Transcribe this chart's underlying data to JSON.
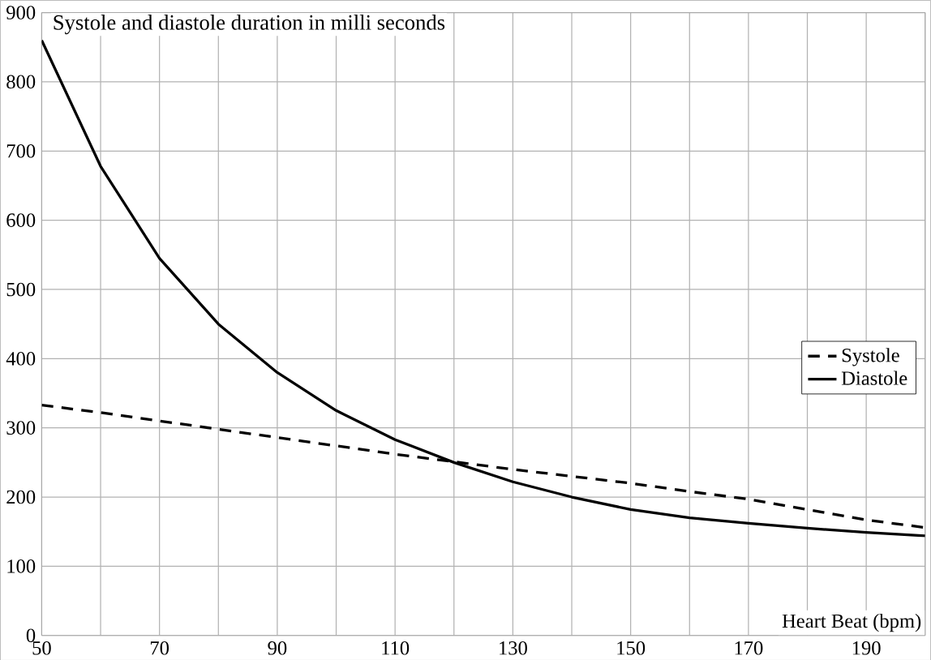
{
  "chart_data": {
    "type": "line",
    "title": "Systole and diastole duration in milli seconds",
    "xlabel": "Heart Beat (bpm)",
    "x": [
      50,
      60,
      70,
      80,
      90,
      100,
      110,
      120,
      130,
      140,
      150,
      160,
      170,
      180,
      190,
      200
    ],
    "series": [
      {
        "name": "Systole",
        "color": "#000000",
        "line_style": "dashed",
        "values": [
          333,
          322,
          310,
          298,
          286,
          274,
          262,
          251,
          240,
          230,
          220,
          208,
          197,
          182,
          167,
          156
        ]
      },
      {
        "name": "Diastole",
        "color": "#000000",
        "line_style": "solid",
        "values": [
          860,
          678,
          545,
          450,
          380,
          325,
          283,
          250,
          222,
          200,
          182,
          170,
          162,
          155,
          149,
          144
        ]
      }
    ],
    "xlim": [
      50,
      200
    ],
    "ylim": [
      0,
      900
    ],
    "xticks": [
      50,
      {
        "value": 60,
        "label": null
      },
      70,
      {
        "value": 80,
        "label": null
      },
      90,
      {
        "value": 100,
        "label": null
      },
      110,
      {
        "value": 120,
        "label": null
      },
      130,
      {
        "value": 140,
        "label": null
      },
      150,
      {
        "value": 160,
        "label": null
      },
      170,
      {
        "value": 180,
        "label": null
      },
      190,
      {
        "value": 200,
        "label": null
      }
    ],
    "yticks": [
      0,
      100,
      200,
      300,
      400,
      500,
      600,
      700,
      800,
      900
    ],
    "grid": true,
    "legend": "right",
    "marker": "none"
  }
}
